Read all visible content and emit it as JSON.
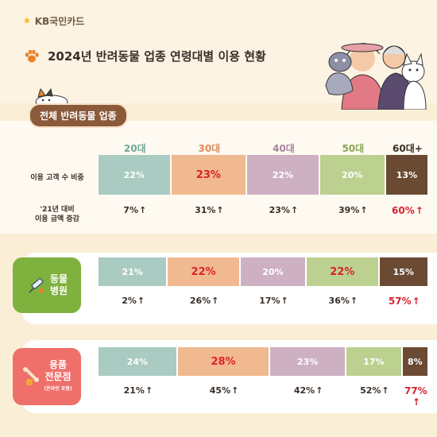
{
  "header": {
    "brand": "KB국민카드",
    "title": "2024년 반려동물 업종 연령대별 이용 현황"
  },
  "colors": {
    "20대": "#a9cbc2",
    "30대": "#f1b98f",
    "40대": "#cdb1c3",
    "50대": "#bcd08f",
    "60대+": "#6b4a34",
    "highlight": "#d9232e"
  },
  "sections": {
    "overall": {
      "tag": "전체 반려동물 업종",
      "share_label": "이용 고객 수 비중",
      "growth_label_1": "'21년 대비",
      "growth_label_2": "이용 금액 증감"
    },
    "hospital": {
      "label_1": "동물",
      "label_2": "병원"
    },
    "supplies": {
      "label_1": "용품",
      "label_2": "전문점",
      "sub": "(온라인 포함)"
    }
  },
  "chart_data": {
    "type": "bar",
    "categories": [
      "20대",
      "30대",
      "40대",
      "50대",
      "60대+"
    ],
    "groups": [
      {
        "name": "전체 반려동물 업종",
        "share": [
          22,
          23,
          22,
          20,
          13
        ],
        "share_text": [
          "22%",
          "23%",
          "22%",
          "20%",
          "13%"
        ],
        "growth": [
          7,
          31,
          23,
          39,
          60
        ],
        "growth_text": [
          "7%",
          "31%",
          "23%",
          "39%",
          "60%"
        ],
        "highlight_share": [
          1
        ],
        "highlight_growth": [
          4
        ]
      },
      {
        "name": "동물 병원",
        "share": [
          21,
          22,
          20,
          22,
          15
        ],
        "share_text": [
          "21%",
          "22%",
          "20%",
          "22%",
          "15%"
        ],
        "growth": [
          2,
          26,
          17,
          36,
          57
        ],
        "growth_text": [
          "2%",
          "26%",
          "17%",
          "36%",
          "57%"
        ],
        "highlight_share": [
          1,
          3
        ],
        "highlight_growth": [
          4
        ]
      },
      {
        "name": "용품 전문점",
        "share": [
          24,
          28,
          23,
          17,
          8
        ],
        "share_text": [
          "24%",
          "28%",
          "23%",
          "17%",
          "8%"
        ],
        "growth": [
          21,
          45,
          42,
          52,
          77
        ],
        "growth_text": [
          "21%",
          "45%",
          "42%",
          "52%",
          "77%"
        ],
        "highlight_share": [
          1
        ],
        "highlight_growth": [
          4
        ]
      }
    ],
    "age_colors": [
      "#a9cbc2",
      "#f1b98f",
      "#cdb1c3",
      "#bcd08f",
      "#6b4a34"
    ],
    "age_label_colors": [
      "#6fa99a",
      "#e08b5a",
      "#a7849e",
      "#8aa552",
      "#3a2f28"
    ]
  }
}
